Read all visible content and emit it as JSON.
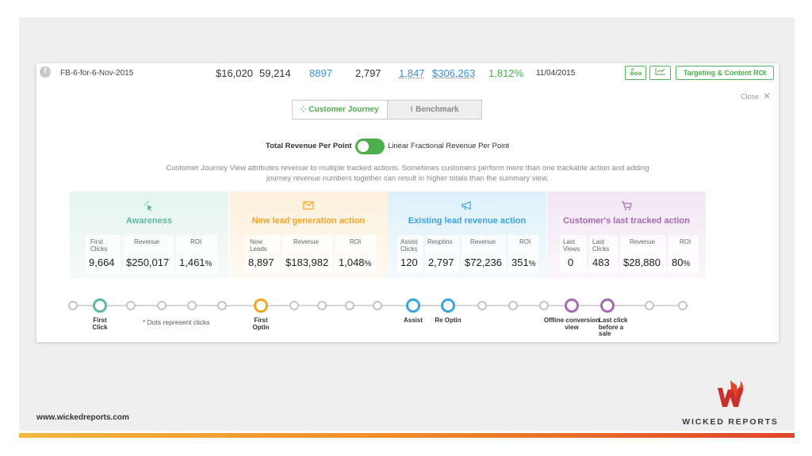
{
  "row": {
    "campaign": "FB-6-for-6-Nov-2015",
    "cost": "$16,020",
    "clicks": "59,214",
    "leads": "8897",
    "optins": "2,797",
    "sales": "1,847",
    "revenue": "$306,263",
    "roi": "1,812%",
    "date": "11/04/2015",
    "targeting_button": "Targeting & Content ROI"
  },
  "close_label": "Close",
  "tabs": [
    {
      "label": "Customer Journey"
    },
    {
      "label": "Benchmark"
    }
  ],
  "toggle": {
    "left_label": "Total Revenue Per Point",
    "right_label": "Linear Fractional Revenue Per Point"
  },
  "description": "Customer Journey View attributes revenue to multiple tracked actions. Sometimes customers perform more than one trackable action and adding journey revenue numbers together can result in higher totals than the summary view.",
  "stages": [
    {
      "title": "Awareness",
      "icon": "cursor-click-icon",
      "color": "#5cb8a2",
      "metrics": [
        {
          "label": "First Clicks",
          "value": "9,664"
        },
        {
          "label": "Revenue",
          "value": "$250,017"
        },
        {
          "label": "ROI",
          "value": "1,461",
          "unit": "%"
        }
      ]
    },
    {
      "title": "New lead generation action",
      "icon": "envelope-icon",
      "color": "#f3a625",
      "metrics": [
        {
          "label": "New Leads",
          "value": "8,897"
        },
        {
          "label": "Revenue",
          "value": "$183,982"
        },
        {
          "label": "ROI",
          "value": "1,048",
          "unit": "%"
        }
      ]
    },
    {
      "title": "Existing lead revenue action",
      "icon": "megaphone-icon",
      "color": "#3aa4dc",
      "metrics": [
        {
          "label": "Assist Clicks",
          "value": "120"
        },
        {
          "label": "Reoptins",
          "value": "2,797"
        },
        {
          "label": "Revenue",
          "value": "$72,236"
        },
        {
          "label": "ROI",
          "value": "351",
          "unit": "%"
        }
      ]
    },
    {
      "title": "Customer's last tracked action",
      "icon": "cart-icon",
      "color": "#a56aaf",
      "metrics": [
        {
          "label": "Last Views",
          "value": "0"
        },
        {
          "label": "Last Clicks",
          "value": "483"
        },
        {
          "label": "Revenue",
          "value": "$28,880"
        },
        {
          "label": "ROI",
          "value": "80",
          "unit": "%"
        }
      ]
    }
  ],
  "timeline": {
    "note": "* Dots represent clicks",
    "labels": [
      "First Click",
      "First Optin",
      "Assist",
      "Re Optin",
      "Offline conversion view",
      "Last click before a sale"
    ]
  },
  "footer": {
    "url": "www.wickedreports.com",
    "brand": "WICKED REPORTS"
  },
  "colors": {
    "accent_green": "#4cae4c",
    "link_blue": "#3d8ed6"
  }
}
